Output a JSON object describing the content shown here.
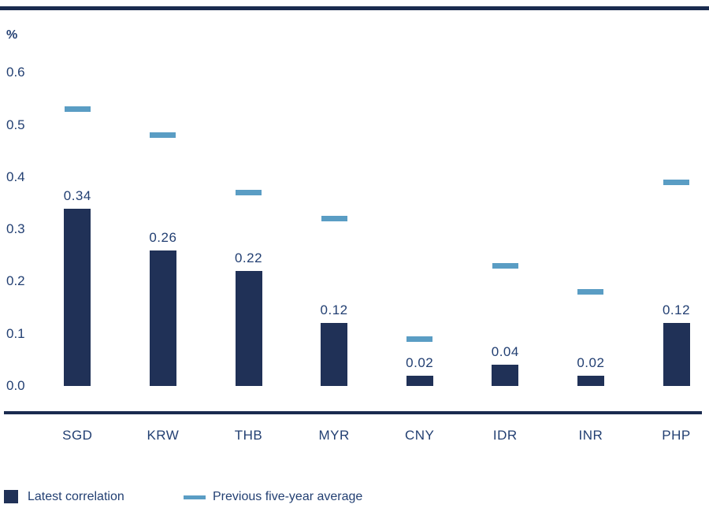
{
  "chart_data": {
    "type": "bar",
    "title": "",
    "unit_label": "%",
    "categories": [
      "SGD",
      "KRW",
      "THB",
      "MYR",
      "CNY",
      "IDR",
      "INR",
      "PHP"
    ],
    "series": [
      {
        "name": "Latest correlation",
        "type": "bar",
        "values": [
          0.34,
          0.26,
          0.22,
          0.12,
          0.02,
          0.04,
          0.02,
          0.12
        ],
        "labels": [
          "0.34",
          "0.26",
          "0.22",
          "0.12",
          "0.02",
          "0.04",
          "0.02",
          "0.12"
        ]
      },
      {
        "name": "Previous five-year average",
        "type": "dash",
        "values": [
          0.53,
          0.48,
          0.37,
          0.32,
          0.09,
          0.23,
          0.18,
          0.39
        ]
      }
    ],
    "yticks": [
      "0.6",
      "0.5",
      "0.4",
      "0.3",
      "0.2",
      "0.1",
      "0.0"
    ],
    "ylim": [
      0,
      0.65
    ],
    "grid": false,
    "legend_position": "bottom"
  },
  "legend": {
    "items": [
      {
        "label": "Latest correlation",
        "swatch": "square"
      },
      {
        "label": "Previous five-year average",
        "swatch": "dash"
      }
    ]
  },
  "colors": {
    "bar_navy": "#203157",
    "line_navy": "#1a2b4f",
    "text_blue": "#223f72",
    "avg_dash_blue": "#5a9dc4",
    "background": "#ffffff"
  }
}
